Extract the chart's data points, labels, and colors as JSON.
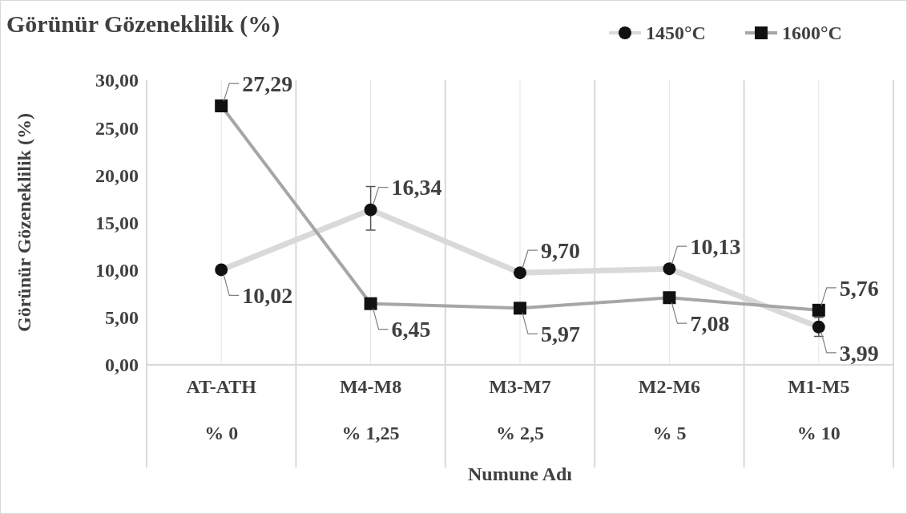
{
  "chart_data": {
    "type": "line",
    "title": "Görünür Gözeneklilik (%)",
    "xlabel": "Numune Adı",
    "ylabel": "Görünür Gözeneklilik (%)",
    "categories": [
      "AT-ATH\n% 0",
      "M4-M8\n% 1,25",
      "M3-M7\n% 2,5",
      "M2-M6\n% 5",
      "M1-M5\n% 10"
    ],
    "series": [
      {
        "name": "1450°C",
        "color": "#d9d9d9",
        "marker": "circle",
        "values": [
          10.02,
          16.34,
          9.7,
          10.13,
          3.99
        ],
        "value_labels": [
          "10,02",
          "16,34",
          "9,70",
          "10,13",
          "3,99"
        ],
        "errors": [
          null,
          [
            14.2,
            18.8
          ],
          null,
          null,
          [
            3.0,
            5.0
          ]
        ]
      },
      {
        "name": "1600°C",
        "color": "#a6a6a6",
        "marker": "square",
        "values": [
          27.29,
          6.45,
          5.97,
          7.08,
          5.76
        ],
        "value_labels": [
          "27,29",
          "6,45",
          "5,97",
          "7,08",
          "5,76"
        ]
      }
    ],
    "ylim": [
      0,
      30
    ],
    "yticks": [
      {
        "value": 0,
        "label": "0,00"
      },
      {
        "value": 5,
        "label": "5,00"
      },
      {
        "value": 10,
        "label": "10,00"
      },
      {
        "value": 15,
        "label": "15,00"
      },
      {
        "value": 20,
        "label": "20,00"
      },
      {
        "value": 25,
        "label": "25,00"
      },
      {
        "value": 30,
        "label": "30,00"
      }
    ],
    "grid": "x",
    "legend": "top right"
  }
}
